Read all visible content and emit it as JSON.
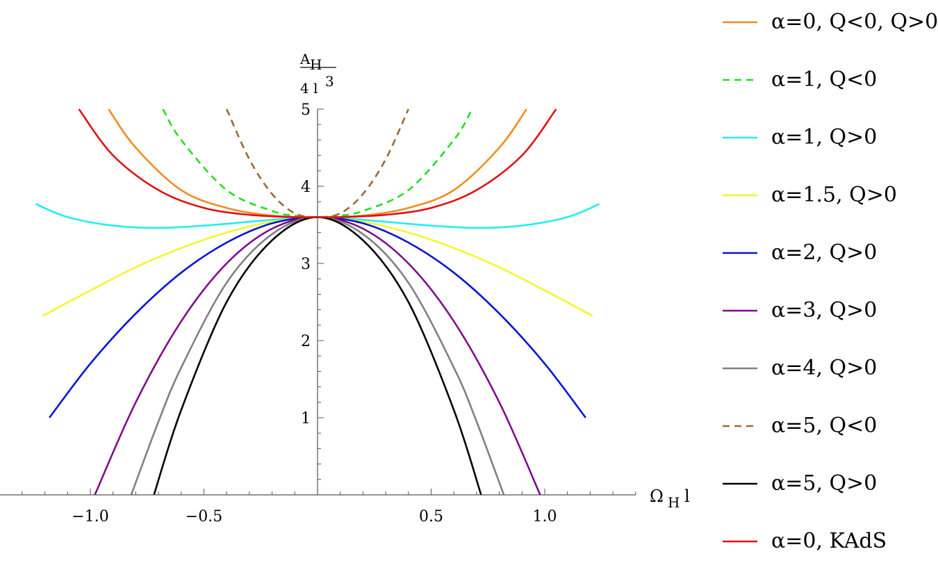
{
  "chart_data": {
    "type": "line",
    "xlabel": {
      "main": "Ω",
      "sub": "H",
      "suffix": "l"
    },
    "ylabel": {
      "numerator": "A",
      "numerator_sub": "H",
      "denominator": "4 l",
      "denominator_sup": "3"
    },
    "xlim": [
      -1.4,
      1.4
    ],
    "ylim": [
      0,
      5
    ],
    "x_ticks": [
      {
        "value": -1.0,
        "label": "−1.0"
      },
      {
        "value": -0.5,
        "label": "−0.5"
      },
      {
        "value": 0.5,
        "label": "0.5"
      },
      {
        "value": 1.0,
        "label": "1.0"
      }
    ],
    "y_ticks": [
      {
        "value": 1,
        "label": "1"
      },
      {
        "value": 2,
        "label": "2"
      },
      {
        "value": 3,
        "label": "3"
      },
      {
        "value": 4,
        "label": "4"
      },
      {
        "value": 5,
        "label": "5"
      }
    ],
    "grid": false,
    "legend_position": "right",
    "series": [
      {
        "name": "α=0, Q<0, Q>0",
        "color": "#F28C1E",
        "dash": false,
        "x": [
          -0.92,
          -0.8,
          -0.6,
          -0.4,
          -0.2,
          0,
          0.2,
          0.4,
          0.6,
          0.8,
          0.92
        ],
        "y": [
          5.0,
          4.5,
          3.95,
          3.72,
          3.62,
          3.6,
          3.62,
          3.72,
          3.95,
          4.5,
          5.0
        ]
      },
      {
        "name": "α=1, Q<0",
        "color": "#22DD22",
        "dash": true,
        "x": [
          -0.68,
          -0.6,
          -0.4,
          -0.2,
          -0.1,
          0,
          0.1,
          0.2,
          0.4,
          0.6,
          0.68
        ],
        "y": [
          5.0,
          4.6,
          3.95,
          3.68,
          3.62,
          3.6,
          3.62,
          3.68,
          3.95,
          4.6,
          5.0
        ]
      },
      {
        "name": "α=1, Q>0",
        "color": "#22EEEE",
        "dash": false,
        "x": [
          -1.24,
          -1.1,
          -0.9,
          -0.7,
          -0.5,
          -0.3,
          -0.1,
          0,
          0.1,
          0.3,
          0.5,
          0.7,
          0.9,
          1.1,
          1.24
        ],
        "y": [
          3.77,
          3.6,
          3.49,
          3.46,
          3.49,
          3.54,
          3.59,
          3.6,
          3.59,
          3.54,
          3.49,
          3.46,
          3.49,
          3.6,
          3.77
        ]
      },
      {
        "name": "α=1.5, Q>0",
        "color": "#F5F52A",
        "dash": false,
        "x": [
          -1.21,
          -1.0,
          -0.8,
          -0.6,
          -0.4,
          -0.2,
          0,
          0.2,
          0.4,
          0.6,
          0.8,
          1.0,
          1.21
        ],
        "y": [
          2.32,
          2.65,
          2.95,
          3.2,
          3.4,
          3.54,
          3.6,
          3.54,
          3.4,
          3.2,
          2.95,
          2.65,
          2.32
        ]
      },
      {
        "name": "α=2, Q>0",
        "color": "#0A12D8",
        "dash": false,
        "x": [
          -1.18,
          -1.0,
          -0.8,
          -0.6,
          -0.4,
          -0.2,
          0,
          0.2,
          0.4,
          0.6,
          0.8,
          1.0,
          1.18
        ],
        "y": [
          1.0,
          1.7,
          2.35,
          2.88,
          3.27,
          3.52,
          3.6,
          3.52,
          3.27,
          2.88,
          2.35,
          1.7,
          1.0
        ]
      },
      {
        "name": "α=3, Q>0",
        "color": "#7F0C8A",
        "dash": false,
        "x": [
          -0.98,
          -0.8,
          -0.6,
          -0.4,
          -0.2,
          0,
          0.2,
          0.4,
          0.6,
          0.8,
          0.98
        ],
        "y": [
          0.0,
          1.2,
          2.25,
          3.0,
          3.45,
          3.6,
          3.45,
          3.0,
          2.25,
          1.2,
          0.0
        ]
      },
      {
        "name": "α=4, Q>0",
        "color": "#808080",
        "dash": false,
        "x": [
          -0.82,
          -0.7,
          -0.6,
          -0.4,
          -0.2,
          0,
          0.2,
          0.4,
          0.6,
          0.7,
          0.82
        ],
        "y": [
          0.0,
          0.95,
          1.65,
          2.75,
          3.38,
          3.6,
          3.38,
          2.75,
          1.65,
          0.95,
          0.0
        ]
      },
      {
        "name": "α=5, Q<0",
        "color": "#9A6A32",
        "dash": true,
        "x": [
          -0.4,
          -0.3,
          -0.2,
          -0.1,
          0,
          0.1,
          0.2,
          0.3,
          0.4
        ],
        "y": [
          5.0,
          4.35,
          3.9,
          3.65,
          3.6,
          3.65,
          3.9,
          4.35,
          5.0
        ]
      },
      {
        "name": "α=5, Q>0",
        "color": "#000000",
        "dash": false,
        "x": [
          -0.72,
          -0.6,
          -0.4,
          -0.2,
          0,
          0.2,
          0.4,
          0.6,
          0.72
        ],
        "y": [
          0.0,
          1.1,
          2.5,
          3.3,
          3.6,
          3.3,
          2.5,
          1.1,
          0.0
        ]
      },
      {
        "name": "α=0, KAdS",
        "color": "#E01010",
        "dash": false,
        "x": [
          -1.05,
          -0.9,
          -0.7,
          -0.5,
          -0.3,
          -0.1,
          0,
          0.1,
          0.3,
          0.5,
          0.7,
          0.9,
          1.05
        ],
        "y": [
          5.0,
          4.4,
          3.95,
          3.72,
          3.63,
          3.6,
          3.6,
          3.6,
          3.63,
          3.72,
          3.95,
          4.4,
          5.0
        ]
      }
    ]
  }
}
